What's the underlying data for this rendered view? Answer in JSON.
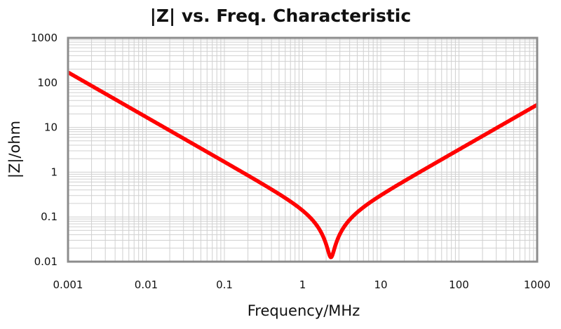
{
  "chart_data": {
    "type": "line",
    "title": "|Z| vs. Freq. Characteristic",
    "xlabel": "Frequency/MHz",
    "ylabel": "|Z|/ohm",
    "xscale": "log",
    "yscale": "log",
    "xlim": [
      0.001,
      1000
    ],
    "ylim": [
      0.01,
      1000
    ],
    "x_ticks": [
      "0.001",
      "0.01",
      "0.1",
      "1",
      "10",
      "100",
      "1000"
    ],
    "y_ticks": [
      "0.01",
      "0.1",
      "1",
      "10",
      "100",
      "1000"
    ],
    "grid": true,
    "legend": null,
    "series": [
      {
        "name": "|Z|",
        "color": "#ff0000",
        "x": [
          0.001,
          0.002,
          0.005,
          0.01,
          0.02,
          0.05,
          0.1,
          0.2,
          0.5,
          1,
          1.5,
          2,
          2.2,
          2.35,
          2.5,
          2.8,
          3.2,
          4,
          5,
          7,
          10,
          20,
          50,
          100,
          200,
          500,
          1000
        ],
        "values": [
          170,
          85,
          34,
          17,
          8.5,
          3.4,
          1.7,
          0.85,
          0.33,
          0.15,
          0.085,
          0.042,
          0.024,
          0.013,
          0.022,
          0.05,
          0.086,
          0.15,
          0.22,
          0.35,
          0.53,
          1.1,
          2.9,
          5.9,
          11.8,
          29.5,
          32
        ]
      }
    ]
  },
  "colors": {
    "curve": "#ff0000",
    "grid": "#d0d0d0",
    "frame": "#8c8c8c"
  }
}
